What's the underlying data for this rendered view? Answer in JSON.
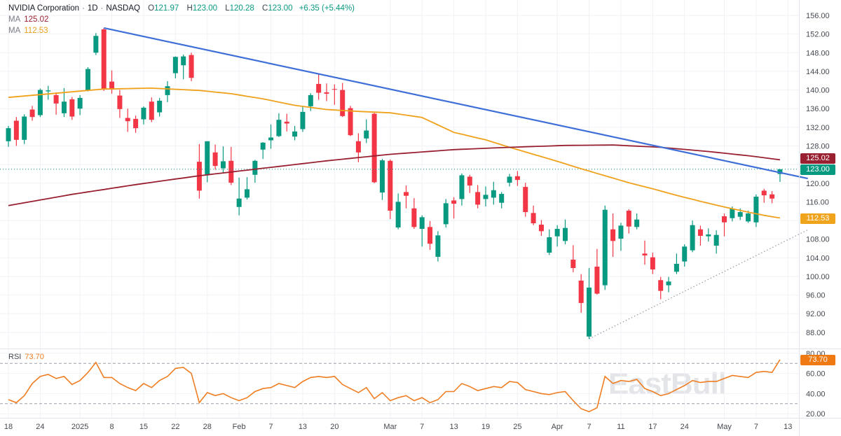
{
  "header": {
    "symbol": "NVIDIA Corporation",
    "sep": "·",
    "sep2": "·",
    "timeframe": "1D",
    "exchange": "NASDAQ",
    "o_label": "O",
    "o": "121.97",
    "h_label": "H",
    "h": "123.00",
    "l_label": "L",
    "l": "120.28",
    "c_label": "C",
    "c": "123.00",
    "change": "+6.35 (+5.44%)",
    "ma1_label": "MA",
    "ma1_value": "125.02",
    "ma2_label": "MA",
    "ma2_value": "112.53"
  },
  "rsi_header": {
    "label": "RSI",
    "value": "73.70"
  },
  "badges": {
    "ma_red": "125.02",
    "last_price": "123.00",
    "ma_orange": "112.53",
    "rsi": "73.70"
  },
  "watermark": {
    "text": "EastBull"
  },
  "colors": {
    "up": "#089981",
    "down": "#f23645",
    "ma_slow": "#992030",
    "ma_fast": "#f0a11b",
    "trend_blue": "#3e6fd8",
    "trend_dotted": "#9598a1",
    "last_price_line": "#089981",
    "rsi_line": "#ef7d22",
    "rsi_dashed": "#9aa0aa",
    "grid": "#f0f2f6",
    "axis_border": "#e0e3eb",
    "axis_text": "#444950"
  },
  "chart_data": {
    "type": "candlestick",
    "title": "NVIDIA Corporation · 1D · NASDAQ",
    "last_price": 123.0,
    "price_axis": {
      "min": 86,
      "max": 157,
      "step": 4,
      "labels": [
        156,
        152,
        148,
        144,
        140,
        136,
        132,
        128,
        120,
        116,
        108,
        104,
        100,
        96,
        92,
        88
      ]
    },
    "time_ticks": [
      {
        "i": 0,
        "label": "18"
      },
      {
        "i": 4,
        "label": "24"
      },
      {
        "i": 9,
        "label": "2025"
      },
      {
        "i": 13,
        "label": "8"
      },
      {
        "i": 17,
        "label": "15"
      },
      {
        "i": 21,
        "label": "22"
      },
      {
        "i": 25,
        "label": "28"
      },
      {
        "i": 29,
        "label": "Feb"
      },
      {
        "i": 33,
        "label": "7"
      },
      {
        "i": 37,
        "label": "13"
      },
      {
        "i": 41,
        "label": "20"
      },
      {
        "i": 48,
        "label": "Mar"
      },
      {
        "i": 52,
        "label": "7"
      },
      {
        "i": 56,
        "label": "13"
      },
      {
        "i": 60,
        "label": "19"
      },
      {
        "i": 64,
        "label": "25"
      },
      {
        "i": 69,
        "label": "Apr"
      },
      {
        "i": 73,
        "label": "7"
      },
      {
        "i": 77,
        "label": "11"
      },
      {
        "i": 81,
        "label": "17"
      },
      {
        "i": 85,
        "label": "24"
      },
      {
        "i": 90,
        "label": "May"
      },
      {
        "i": 94,
        "label": "7"
      },
      {
        "i": 98,
        "label": "13"
      }
    ],
    "candles": [
      [
        "Dec 18",
        129.0,
        132.3,
        127.8,
        131.8
      ],
      [
        "Dec 19",
        133.4,
        134.2,
        128.0,
        129.3
      ],
      [
        "Dec 20",
        129.3,
        134.8,
        128.4,
        134.3
      ],
      [
        "Dec 23",
        135.8,
        136.6,
        133.4,
        134.2
      ],
      [
        "Dec 24",
        134.6,
        140.3,
        134.2,
        140.0
      ],
      [
        "Dec 26",
        139.7,
        140.9,
        137.9,
        139.9
      ],
      [
        "Dec 27",
        138.9,
        139.5,
        134.7,
        137.1
      ],
      [
        "Dec 30",
        135.0,
        140.4,
        134.2,
        137.5
      ],
      [
        "Dec 31",
        138.0,
        138.5,
        133.6,
        134.3
      ],
      [
        "Jan 2",
        136.0,
        138.9,
        134.6,
        138.3
      ],
      [
        "Jan 3",
        140.0,
        144.9,
        139.7,
        144.5
      ],
      [
        "Jan 6",
        148.0,
        152.2,
        147.5,
        151.6
      ],
      [
        "Jan 7",
        153.0,
        153.3,
        139.8,
        140.2
      ],
      [
        "Jan 8",
        141.8,
        144.2,
        139.2,
        140.1
      ],
      [
        "Jan 10",
        138.8,
        140.0,
        134.0,
        135.9
      ],
      [
        "Jan 13",
        134.0,
        136.0,
        131.0,
        133.3
      ],
      [
        "Jan 14",
        133.8,
        134.5,
        130.8,
        131.8
      ],
      [
        "Jan 15",
        133.7,
        136.5,
        132.6,
        136.2
      ],
      [
        "Jan 16",
        137.5,
        138.4,
        133.1,
        133.6
      ],
      [
        "Jan 17",
        135.2,
        138.3,
        134.3,
        137.7
      ],
      [
        "Jan 21",
        138.9,
        141.9,
        137.4,
        140.8
      ],
      [
        "Jan 22",
        143.6,
        147.2,
        142.5,
        147.1
      ],
      [
        "Jan 23",
        145.3,
        147.6,
        142.3,
        147.2
      ],
      [
        "Jan 24",
        147.5,
        148.0,
        141.9,
        142.6
      ],
      [
        "Jan 27",
        124.6,
        128.4,
        116.7,
        118.4
      ],
      [
        "Jan 28",
        121.9,
        129.0,
        120.2,
        129.0
      ],
      [
        "Jan 29",
        126.6,
        128.3,
        122.9,
        123.7
      ],
      [
        "Jan 30",
        123.2,
        127.9,
        122.2,
        124.7
      ],
      [
        "Jan 31",
        124.8,
        127.8,
        119.6,
        120.1
      ],
      [
        "Feb 3",
        114.9,
        121.2,
        113.1,
        116.7
      ],
      [
        "Feb 4",
        116.9,
        121.3,
        116.5,
        118.7
      ],
      [
        "Feb 5",
        121.8,
        125.0,
        120.1,
        124.8
      ],
      [
        "Feb 6",
        127.2,
        128.8,
        125.2,
        128.7
      ],
      [
        "Feb 7",
        129.2,
        132.6,
        127.4,
        129.8
      ],
      [
        "Feb 10",
        130.1,
        135.0,
        129.9,
        133.6
      ],
      [
        "Feb 11",
        133.2,
        134.9,
        131.1,
        132.8
      ],
      [
        "Feb 12",
        130.0,
        132.3,
        129.2,
        131.1
      ],
      [
        "Feb 13",
        131.6,
        136.5,
        131.0,
        135.3
      ],
      [
        "Feb 14",
        136.5,
        139.3,
        135.5,
        138.9
      ],
      [
        "Feb 18",
        141.3,
        143.4,
        137.9,
        139.4
      ],
      [
        "Feb 19",
        139.5,
        141.4,
        137.6,
        139.2
      ],
      [
        "Feb 20",
        140.2,
        141.2,
        136.8,
        140.1
      ],
      [
        "Feb 21",
        140.0,
        141.5,
        134.2,
        134.4
      ],
      [
        "Feb 24",
        136.1,
        136.6,
        130.1,
        130.3
      ],
      [
        "Feb 25",
        129.0,
        130.7,
        124.5,
        126.6
      ],
      [
        "Feb 26",
        129.6,
        133.7,
        128.6,
        131.3
      ],
      [
        "Feb 27",
        134.9,
        135.1,
        120.0,
        120.2
      ],
      [
        "Feb 28",
        118.0,
        125.2,
        116.4,
        124.9
      ],
      [
        "Mar 3",
        124.8,
        125.1,
        112.3,
        114.1
      ],
      [
        "Mar 4",
        110.5,
        117.8,
        110.1,
        116.0
      ],
      [
        "Mar 5",
        118.1,
        119.5,
        114.6,
        117.3
      ],
      [
        "Mar 6",
        114.6,
        116.8,
        110.2,
        110.6
      ],
      [
        "Mar 7",
        110.2,
        113.1,
        106.4,
        112.7
      ],
      [
        "Mar 10",
        110.6,
        111.9,
        105.7,
        107.0
      ],
      [
        "Mar 11",
        104.2,
        109.7,
        103.2,
        108.8
      ],
      [
        "Mar 12",
        111.2,
        116.6,
        110.5,
        115.7
      ],
      [
        "Mar 13",
        116.3,
        117.0,
        112.4,
        115.6
      ],
      [
        "Mar 14",
        116.6,
        122.1,
        115.2,
        121.7
      ],
      [
        "Mar 17",
        121.4,
        121.8,
        117.9,
        119.5
      ],
      [
        "Mar 18",
        118.1,
        119.6,
        114.6,
        115.4
      ],
      [
        "Mar 19",
        116.6,
        119.3,
        115.0,
        117.5
      ],
      [
        "Mar 20",
        116.9,
        120.3,
        115.4,
        118.5
      ],
      [
        "Mar 21",
        115.8,
        118.1,
        114.6,
        117.7
      ],
      [
        "Mar 24",
        120.1,
        122.0,
        119.3,
        121.4
      ],
      [
        "Mar 25",
        121.5,
        122.6,
        119.4,
        120.7
      ],
      [
        "Mar 26",
        119.2,
        120.1,
        112.8,
        113.8
      ],
      [
        "Mar 27",
        113.6,
        115.2,
        111.0,
        111.4
      ],
      [
        "Mar 28",
        111.1,
        112.1,
        108.7,
        109.7
      ],
      [
        "Mar 31",
        105.1,
        110.1,
        104.6,
        108.4
      ],
      [
        "Apr 1",
        108.6,
        111.0,
        106.4,
        110.2
      ],
      [
        "Apr 2",
        107.6,
        112.2,
        106.9,
        110.4
      ],
      [
        "Apr 3",
        103.6,
        106.7,
        100.9,
        101.8
      ],
      [
        "Apr 4",
        99.1,
        100.5,
        92.2,
        94.3
      ],
      [
        "Apr 7",
        87.1,
        101.8,
        86.6,
        97.6
      ],
      [
        "Apr 8",
        102.1,
        105.9,
        96.1,
        96.3
      ],
      [
        "Apr 9",
        98.1,
        115.2,
        97.1,
        114.3
      ],
      [
        "Apr 10",
        110.1,
        113.5,
        104.2,
        107.6
      ],
      [
        "Apr 11",
        108.1,
        111.5,
        105.5,
        110.9
      ],
      [
        "Apr 14",
        114.1,
        114.4,
        109.2,
        110.7
      ],
      [
        "Apr 15",
        110.6,
        113.5,
        110.1,
        112.2
      ],
      [
        "Apr 16",
        104.9,
        107.7,
        102.5,
        104.5
      ],
      [
        "Apr 17",
        104.1,
        105.1,
        100.5,
        101.5
      ],
      [
        "Apr 21",
        99.2,
        99.9,
        95.1,
        96.9
      ],
      [
        "Apr 22",
        98.1,
        99.9,
        96.6,
        98.9
      ],
      [
        "Apr 23",
        101.0,
        104.9,
        100.5,
        102.7
      ],
      [
        "Apr 24",
        103.2,
        106.9,
        102.1,
        106.4
      ],
      [
        "Apr 25",
        105.6,
        112.0,
        105.2,
        111.0
      ],
      [
        "Apr 28",
        110.1,
        110.9,
        106.6,
        108.7
      ],
      [
        "Apr 29",
        108.6,
        110.3,
        107.5,
        109.0
      ],
      [
        "Apr 30",
        106.6,
        109.9,
        104.9,
        108.9
      ],
      [
        "May 1",
        112.9,
        113.5,
        108.6,
        111.6
      ],
      [
        "May 2",
        112.5,
        115.0,
        111.8,
        114.5
      ],
      [
        "May 5",
        112.8,
        114.6,
        112.1,
        113.8
      ],
      [
        "May 6",
        111.8,
        114.1,
        111.5,
        113.5
      ],
      [
        "May 7",
        111.6,
        117.6,
        110.6,
        117.1
      ],
      [
        "May 8",
        118.4,
        118.8,
        115.8,
        117.4
      ],
      [
        "May 9",
        117.6,
        118.3,
        115.7,
        116.7
      ],
      [
        "May 12",
        121.97,
        123.0,
        120.28,
        123.0
      ]
    ],
    "ma_slow": {
      "label": "MA",
      "current": 125.02,
      "points": [
        [
          0,
          115.2
        ],
        [
          8,
          117.6
        ],
        [
          16,
          119.7
        ],
        [
          24,
          121.6
        ],
        [
          32,
          123.2
        ],
        [
          40,
          124.8
        ],
        [
          48,
          126.2
        ],
        [
          56,
          127.2
        ],
        [
          63,
          127.7
        ],
        [
          70,
          128.1
        ],
        [
          76,
          128.2
        ],
        [
          82,
          127.7
        ],
        [
          88,
          126.8
        ],
        [
          93,
          125.9
        ],
        [
          97,
          125.02
        ]
      ]
    },
    "ma_fast": {
      "label": "MA",
      "current": 112.53,
      "points": [
        [
          0,
          138.4
        ],
        [
          6,
          139.3
        ],
        [
          12,
          140.2
        ],
        [
          18,
          140.4
        ],
        [
          24,
          139.9
        ],
        [
          28,
          139.2
        ],
        [
          32,
          138.1
        ],
        [
          36,
          136.7
        ],
        [
          40,
          135.8
        ],
        [
          44,
          135.4
        ],
        [
          48,
          135.1
        ],
        [
          52,
          134.1
        ],
        [
          56,
          130.9
        ],
        [
          60,
          129.3
        ],
        [
          63,
          127.7
        ],
        [
          66,
          126.2
        ],
        [
          69,
          124.7
        ],
        [
          72,
          123.1
        ],
        [
          75,
          121.6
        ],
        [
          78,
          120.1
        ],
        [
          81,
          118.8
        ],
        [
          84,
          117.4
        ],
        [
          87,
          116.1
        ],
        [
          90,
          114.9
        ],
        [
          93,
          113.8
        ],
        [
          95,
          113.1
        ],
        [
          97,
          112.53
        ]
      ]
    },
    "trendlines": {
      "resistance_blue": {
        "i1": 12,
        "p1": 153.3,
        "i2": 100.5,
        "p2": 121.0
      },
      "support_dotted": {
        "i1": 73,
        "p1": 86.6,
        "i2": 100.5,
        "p2": 110.0
      }
    },
    "rsi": {
      "current": 73.7,
      "overbought": 70,
      "oversold": 30,
      "values": [
        34,
        31,
        38,
        50,
        57,
        59,
        55,
        57,
        49,
        53,
        61,
        71,
        56,
        56,
        50,
        46,
        43,
        50,
        46,
        53,
        57,
        65,
        66,
        60,
        31,
        41,
        38,
        40,
        36,
        33,
        36,
        42,
        45,
        46,
        50,
        48,
        46,
        52,
        56,
        57,
        56,
        57,
        49,
        45,
        41,
        46,
        35,
        41,
        33,
        36,
        38,
        33,
        36,
        31,
        34,
        42,
        42,
        50,
        47,
        43,
        45,
        47,
        46,
        52,
        51,
        44,
        42,
        40,
        39,
        41,
        42,
        33,
        25,
        22,
        26,
        57,
        50,
        53,
        52,
        54,
        45,
        42,
        38,
        40,
        44,
        48,
        53,
        51,
        52,
        52,
        55,
        58,
        57,
        56,
        61,
        62,
        61,
        73.7
      ]
    },
    "rsi_axis": {
      "labels": [
        80,
        60,
        40,
        20
      ],
      "dashed": [
        70,
        30
      ]
    }
  }
}
